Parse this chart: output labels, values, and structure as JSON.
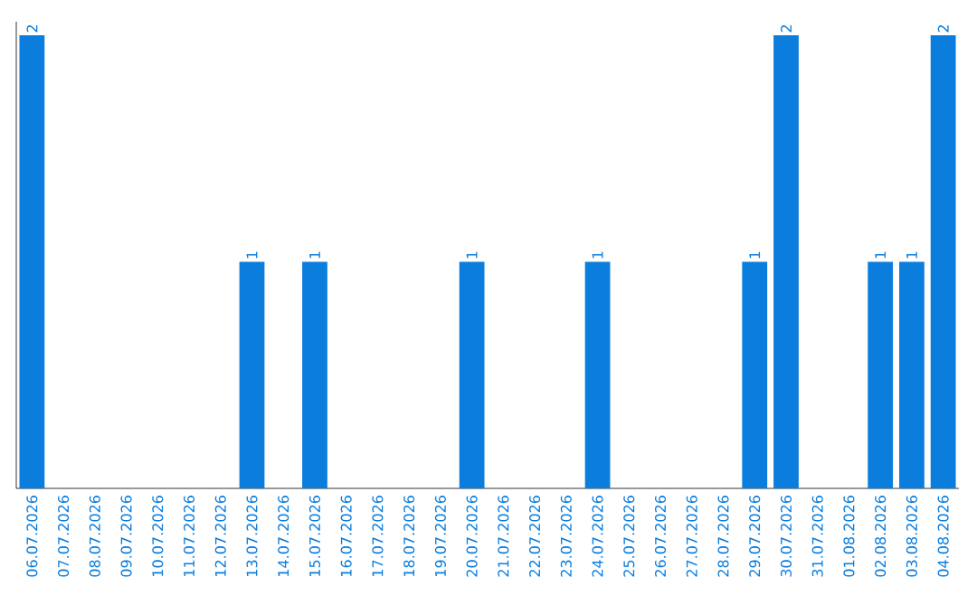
{
  "chart_data": {
    "type": "bar",
    "categories": [
      "06.07.2026",
      "07.07.2026",
      "08.07.2026",
      "09.07.2026",
      "10.07.2026",
      "11.07.2026",
      "12.07.2026",
      "13.07.2026",
      "14.07.2026",
      "15.07.2026",
      "16.07.2026",
      "17.07.2026",
      "18.07.2026",
      "19.07.2026",
      "20.07.2026",
      "21.07.2026",
      "22.07.2026",
      "23.07.2026",
      "24.07.2026",
      "25.07.2026",
      "26.07.2026",
      "27.07.2026",
      "28.07.2026",
      "29.07.2026",
      "30.07.2026",
      "31.07.2026",
      "01.08.2026",
      "02.08.2026",
      "03.08.2026",
      "04.08.2026"
    ],
    "values": [
      2,
      0,
      0,
      0,
      0,
      0,
      0,
      1,
      0,
      1,
      0,
      0,
      0,
      0,
      1,
      0,
      0,
      0,
      1,
      0,
      0,
      0,
      0,
      1,
      2,
      0,
      0,
      1,
      1,
      2
    ],
    "value_labels": [
      "2",
      null,
      null,
      null,
      null,
      null,
      null,
      "1",
      null,
      "1",
      null,
      null,
      null,
      null,
      "1",
      null,
      null,
      null,
      "1",
      null,
      null,
      null,
      null,
      "1",
      "2",
      null,
      null,
      "1",
      "1",
      "2"
    ],
    "color": "#0a7ddd"
  }
}
